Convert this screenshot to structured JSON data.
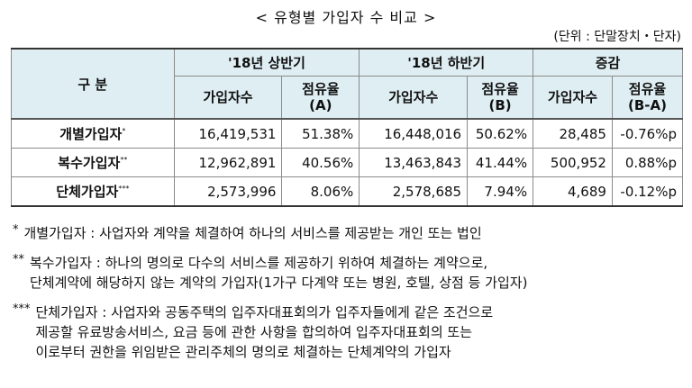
{
  "title": "< 유형별 가입자 수 비교 >",
  "unit": "(단위 : 단말장치・단자)",
  "table": {
    "header": {
      "category": "구 분",
      "groups": [
        "'18년 상반기",
        "'18년 하반기",
        "증감"
      ],
      "subs": [
        "가입자수",
        "점유율 (A)",
        "가입자수",
        "점유율 (B)",
        "가입자수",
        "점유율 (B-A)"
      ]
    },
    "rows": [
      {
        "label": "개별가입자",
        "mark": "*",
        "c1": "16,419,531",
        "c2": "51.38%",
        "c3": "16,448,016",
        "c4": "50.62%",
        "c5": "28,485",
        "c6": "-0.76%p"
      },
      {
        "label": "복수가입자",
        "mark": "**",
        "c1": "12,962,891",
        "c2": "40.56%",
        "c3": "13,463,843",
        "c4": "41.44%",
        "c5": "500,952",
        "c6": "0.88%p"
      },
      {
        "label": "단체가입자",
        "mark": "***",
        "c1": "2,573,996",
        "c2": "8.06%",
        "c3": "2,578,685",
        "c4": "7.94%",
        "c5": "4,689",
        "c6": "-0.12%p"
      }
    ]
  },
  "notes": [
    {
      "mark": "*",
      "lines": [
        "개별가입자 : 사업자와 계약을 체결하여 하나의 서비스를 제공받는 개인 또는 법인"
      ]
    },
    {
      "mark": "**",
      "lines": [
        "복수가입자 : 하나의 명의로 다수의 서비스를 제공하기 위하여 체결하는 계약으로,",
        "단체계약에 해당하지 않는 계약의 가입자(1가구 다계약 또는 병원, 호텔, 상점 등 가입자)"
      ]
    },
    {
      "mark": "***",
      "lines": [
        "단체가입자 : 사업자와 공동주택의 입주자대표회의가 입주자들에게 같은 조건으로",
        "제공할 유료방송서비스, 요금 등에 관한 사항을 합의하여 입주자대표회의 또는",
        "이로부터 권한을 위임받은 관리주체의 명의로 체결하는 단체계약의 가입자"
      ]
    }
  ]
}
